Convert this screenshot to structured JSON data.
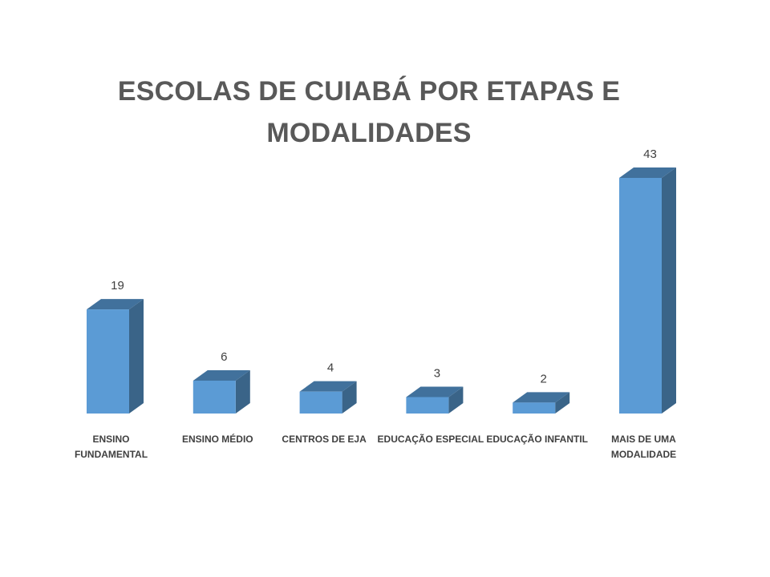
{
  "chart_data": {
    "type": "bar",
    "style": "3d-column",
    "title": "ESCOLAS DE CUIABÁ POR ETAPAS E MODALIDADES",
    "categories": [
      "ENSINO FUNDAMENTAL",
      "ENSINO MÉDIO",
      "CENTROS DE EJA",
      "EDUCAÇÃO ESPECIAL",
      "EDUCAÇÃO INFANTIL",
      "MAIS DE UMA MODALIDADE"
    ],
    "values": [
      19,
      6,
      4,
      3,
      2,
      43
    ],
    "data_labels": [
      "19",
      "6",
      "4",
      "3",
      "2",
      "43"
    ],
    "ylim": [
      0,
      43
    ],
    "grid": false,
    "legend": "none",
    "colors": {
      "front": "#5b9bd5",
      "top": "#41719c",
      "side": "#3a6488",
      "title": "#595959",
      "labels": "#404040"
    }
  }
}
